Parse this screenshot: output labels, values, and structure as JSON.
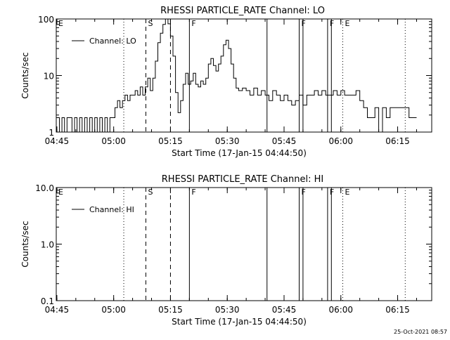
{
  "footer": {
    "timestamp": "25-Oct-2021 08:57"
  },
  "chart_data": [
    {
      "type": "line",
      "title": "RHESSI PARTICLE_RATE Channel: LO",
      "xlabel": "Start Time (17-Jan-15 04:44:50)",
      "ylabel": "Counts/sec",
      "yscale": "log",
      "xlim": [
        "04:44:50",
        "06:24:00"
      ],
      "ylim": [
        1,
        100
      ],
      "xticks": [
        "04:45",
        "05:00",
        "05:15",
        "05:30",
        "05:45",
        "06:00",
        "06:15"
      ],
      "yticks": [
        "1",
        "10",
        "100"
      ],
      "legend": {
        "position": "top-left",
        "entries": [
          "Channel: LO"
        ]
      },
      "grid": false,
      "series": [
        {
          "name": "Channel: LO",
          "x": [
            "04:44:50",
            "04:45:40",
            "04:46:20",
            "04:47:00",
            "04:47:40",
            "04:48:20",
            "04:49:00",
            "04:49:40",
            "04:50:20",
            "04:51:00",
            "04:51:40",
            "04:52:20",
            "04:53:00",
            "04:53:40",
            "04:54:20",
            "04:55:00",
            "04:55:40",
            "04:56:20",
            "04:57:00",
            "04:57:40",
            "04:58:20",
            "04:59:00",
            "04:59:40",
            "05:00:20",
            "05:01:00",
            "05:01:40",
            "05:02:20",
            "05:03:00",
            "05:03:40",
            "05:04:20",
            "05:05:00",
            "05:05:40",
            "05:06:20",
            "05:07:00",
            "05:07:40",
            "05:08:20",
            "05:09:00",
            "05:09:40",
            "05:10:20",
            "05:11:00",
            "05:11:40",
            "05:12:20",
            "05:13:00",
            "05:13:40",
            "05:14:20",
            "05:15:00",
            "05:15:40",
            "05:16:20",
            "05:17:00",
            "05:17:40",
            "05:18:20",
            "05:19:00",
            "05:19:40",
            "05:20:20",
            "05:21:00",
            "05:21:40",
            "05:22:20",
            "05:23:00",
            "05:23:40",
            "05:24:20",
            "05:25:00",
            "05:25:40",
            "05:26:20",
            "05:27:00",
            "05:27:40",
            "05:28:20",
            "05:29:00",
            "05:29:40",
            "05:30:20",
            "05:31:00",
            "05:31:40",
            "05:32:20",
            "05:33:00",
            "05:34:00",
            "05:35:00",
            "05:36:00",
            "05:37:00",
            "05:38:00",
            "05:39:00",
            "05:40:00",
            "05:41:00",
            "05:42:00",
            "05:43:00",
            "05:44:00",
            "05:45:00",
            "05:46:00",
            "05:47:00",
            "05:48:00",
            "05:49:00",
            "05:50:00",
            "05:51:00",
            "05:52:00",
            "05:53:00",
            "05:54:00",
            "05:55:00",
            "05:56:00",
            "05:57:00",
            "05:58:00",
            "05:59:00",
            "06:00:00",
            "06:01:00",
            "06:02:00",
            "06:03:00",
            "06:04:00",
            "06:05:00",
            "06:06:00",
            "06:07:00",
            "06:08:00",
            "06:09:00",
            "06:10:00",
            "06:11:00",
            "06:12:00",
            "06:13:00",
            "06:14:00",
            "06:15:00",
            "06:16:00",
            "06:17:00",
            "06:18:00",
            "06:19:00",
            "06:20:00"
          ],
          "y": [
            1.8,
            1.0,
            1.8,
            1.0,
            1.8,
            1.8,
            1.0,
            1.8,
            1.0,
            1.8,
            1.0,
            1.8,
            1.0,
            1.8,
            1.0,
            1.8,
            1.0,
            1.8,
            1.0,
            1.8,
            1.0,
            1.8,
            1.8,
            2.7,
            3.6,
            2.7,
            3.6,
            4.5,
            3.6,
            4.5,
            4.5,
            5.4,
            4.5,
            6.3,
            4.5,
            6.3,
            9.0,
            5.4,
            9.0,
            18,
            38,
            56,
            80,
            100,
            82,
            50,
            22,
            5.0,
            2.2,
            3.6,
            7.0,
            11,
            7.0,
            8.0,
            11,
            7.0,
            6.3,
            8.0,
            7.0,
            9.0,
            16,
            20,
            15,
            12,
            16,
            22,
            35,
            42,
            30,
            16,
            9.0,
            6.0,
            5.4,
            6.0,
            5.4,
            4.5,
            6.0,
            4.5,
            5.4,
            4.5,
            3.6,
            5.4,
            4.5,
            3.6,
            4.5,
            3.6,
            3.0,
            3.6,
            4.5,
            3.0,
            4.5,
            4.5,
            5.4,
            4.5,
            5.4,
            4.5,
            4.5,
            5.4,
            4.5,
            5.4,
            4.5,
            4.5,
            4.5,
            5.4,
            3.6,
            2.7,
            1.8,
            1.8,
            2.7,
            1.0,
            2.7,
            1.8,
            2.7,
            2.7,
            2.7,
            2.7,
            2.7,
            1.8,
            1.8,
            1.8
          ]
        }
      ],
      "markers": [
        {
          "label": "E",
          "time": "04:44:50",
          "style": "dotted"
        },
        {
          "label": "",
          "time": "05:02:40",
          "style": "dotted"
        },
        {
          "label": "S",
          "time": "05:08:30",
          "style": "dashed"
        },
        {
          "label": "",
          "time": "05:15:00",
          "style": "dashed"
        },
        {
          "label": "F",
          "time": "05:20:00",
          "style": "solid"
        },
        {
          "label": "",
          "time": "05:40:30",
          "style": "solid"
        },
        {
          "label": "F",
          "time": "05:49:00",
          "style": "solid"
        },
        {
          "label": "",
          "time": "05:50:00",
          "style": "solid"
        },
        {
          "label": "F",
          "time": "05:56:30",
          "style": "solid"
        },
        {
          "label": "",
          "time": "05:57:30",
          "style": "solid"
        },
        {
          "label": "E",
          "time": "06:00:30",
          "style": "dotted"
        },
        {
          "label": "",
          "time": "06:17:00",
          "style": "dotted"
        }
      ]
    },
    {
      "type": "line",
      "title": "RHESSI PARTICLE_RATE Channel: HI",
      "xlabel": "Start Time (17-Jan-15 04:44:50)",
      "ylabel": "Counts/sec",
      "yscale": "log",
      "xlim": [
        "04:44:50",
        "06:24:00"
      ],
      "ylim": [
        0.1,
        10
      ],
      "xticks": [
        "04:45",
        "05:00",
        "05:15",
        "05:30",
        "05:45",
        "06:00",
        "06:15"
      ],
      "yticks": [
        "0.1",
        "1.0",
        "10.0"
      ],
      "legend": {
        "position": "top-left",
        "entries": [
          "Channel: HI"
        ]
      },
      "grid": false,
      "series": [
        {
          "name": "Channel: HI",
          "x": [],
          "y": []
        }
      ],
      "markers": [
        {
          "label": "E",
          "time": "04:44:50",
          "style": "dotted"
        },
        {
          "label": "",
          "time": "05:02:40",
          "style": "dotted"
        },
        {
          "label": "S",
          "time": "05:08:30",
          "style": "dashed"
        },
        {
          "label": "",
          "time": "05:15:00",
          "style": "dashed"
        },
        {
          "label": "F",
          "time": "05:20:00",
          "style": "solid"
        },
        {
          "label": "",
          "time": "05:40:30",
          "style": "solid"
        },
        {
          "label": "F",
          "time": "05:49:00",
          "style": "solid"
        },
        {
          "label": "",
          "time": "05:50:00",
          "style": "solid"
        },
        {
          "label": "F",
          "time": "05:56:30",
          "style": "solid"
        },
        {
          "label": "",
          "time": "05:57:30",
          "style": "solid"
        },
        {
          "label": "E",
          "time": "06:00:30",
          "style": "dotted"
        },
        {
          "label": "",
          "time": "06:17:00",
          "style": "dotted"
        }
      ]
    }
  ]
}
